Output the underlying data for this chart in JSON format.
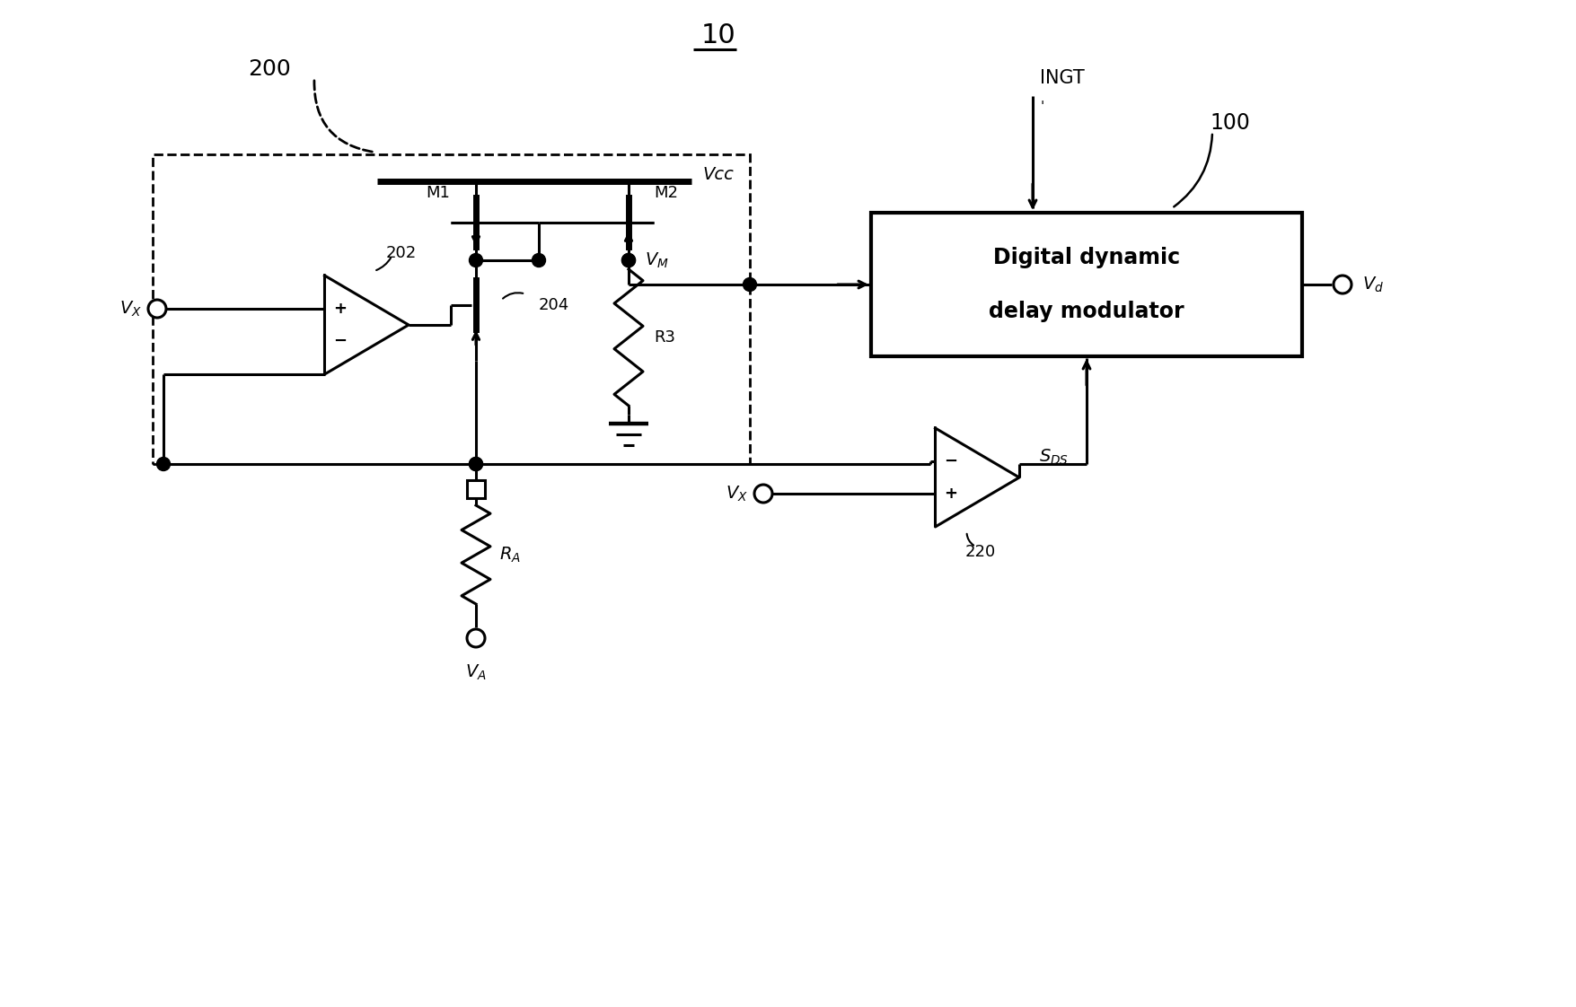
{
  "bg_color": "#ffffff",
  "line_color": "#000000",
  "lw": 2.2,
  "figsize": [
    17.56,
    11.22
  ],
  "dpi": 100,
  "title": "10",
  "labels": {
    "vcc": "Vcc",
    "vm": "V_M",
    "vd": "V_d",
    "vx": "V_X",
    "va": "V_A",
    "ingt": "INGT",
    "sds": "S_{DS}",
    "m1": "M1",
    "m2": "M2",
    "r3": "R3",
    "ra": "R_A",
    "block200": "200",
    "block100": "100",
    "oa202": "202",
    "nmos204": "204",
    "cmp220": "220",
    "ddm_line1": "Digital dynamic",
    "ddm_line2": "delay modulator"
  }
}
